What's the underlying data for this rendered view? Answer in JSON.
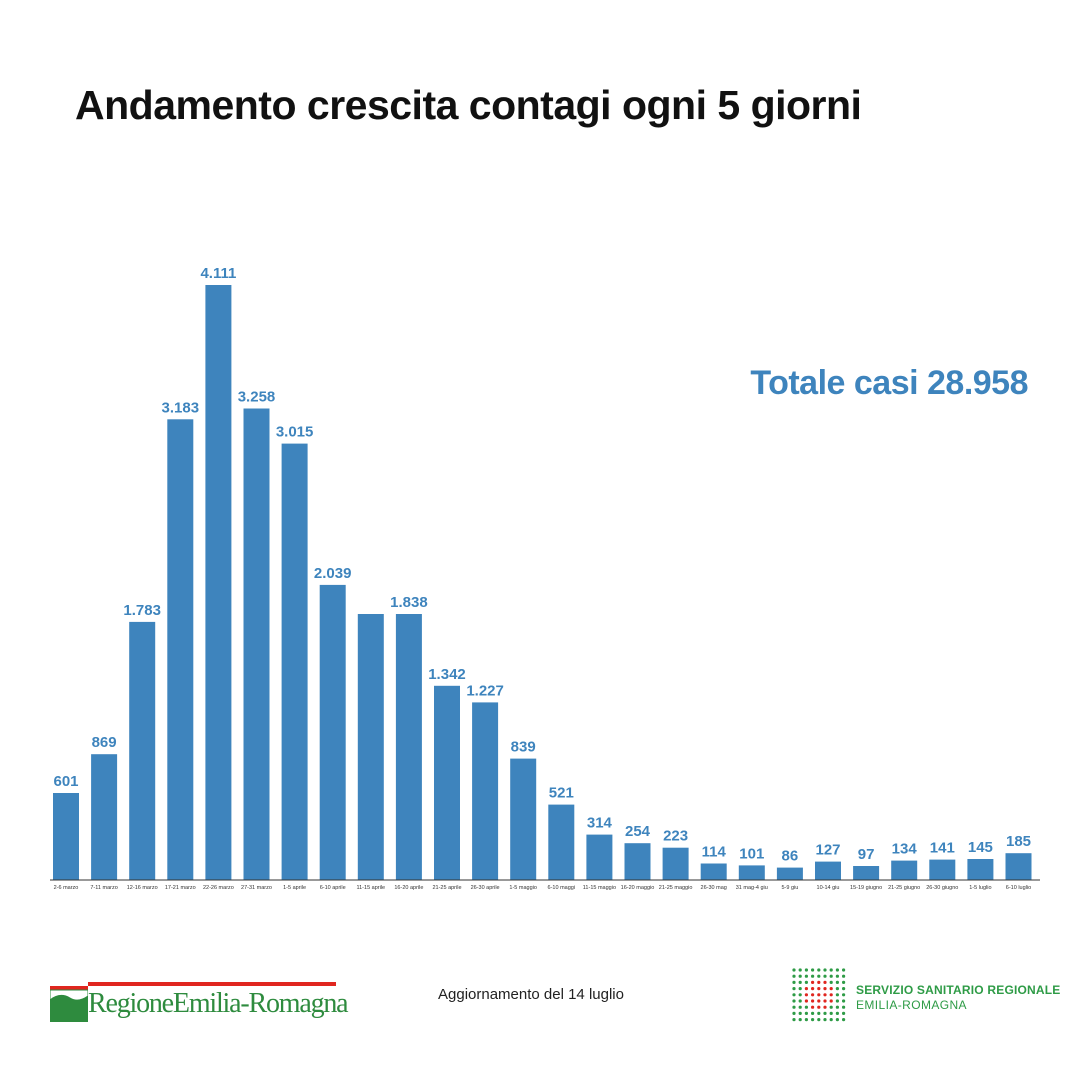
{
  "header": {
    "title": "Andamento crescita contagi ogni 5 giorni",
    "total": "Totale casi 28.958"
  },
  "footer": {
    "update_note": "Aggiornamento del 14 luglio",
    "left_logo_text": "RegioneEmilia-Romagna",
    "right_logo_line1": "SERVIZIO SANITARIO REGIONALE",
    "right_logo_line2": "EMILIA-ROMAGNA"
  },
  "colors": {
    "bar": "#3e84bd",
    "label": "#3e84bd",
    "title": "#111111",
    "axis": "#333333",
    "logo_green": "#2e8b3e",
    "logo_red": "#e0261f"
  },
  "chart_data": {
    "type": "bar",
    "title": "Andamento crescita contagi ogni 5 giorni",
    "xlabel": "",
    "ylabel": "",
    "ylim": [
      0,
      4111
    ],
    "grid": false,
    "legend": "none",
    "categories": [
      "2-6 marzo",
      "7-11 marzo",
      "12-16 marzo",
      "17-21 marzo",
      "22-26 marzo",
      "27-31 marzo",
      "1-5 aprile",
      "6-10 aprile",
      "11-15 aprile",
      "16-20 aprile",
      "21-25 aprile",
      "26-30 aprile",
      "1-5 maggio",
      "6-10 maggi",
      "11-15 maggio",
      "16-20 maggio",
      "21-25 maggio",
      "26-30 mag",
      "31 mag-4 giu",
      "5-9 giu",
      "10-14 giu",
      "15-19 giugno",
      "21-25 giugno",
      "26-30 giugno",
      "1-5 luglio",
      "6-10 luglio"
    ],
    "values": [
      601,
      869,
      1783,
      3183,
      4111,
      3258,
      3015,
      2039,
      1838,
      1838,
      1342,
      1227,
      839,
      521,
      314,
      254,
      223,
      114,
      101,
      86,
      127,
      97,
      134,
      141,
      145,
      185
    ],
    "data_labels": [
      "601",
      "869",
      "1.783",
      "3.183",
      "4.111",
      "3.258",
      "3.015",
      "2.039",
      "",
      "1.838",
      "1.342",
      "1.227",
      "839",
      "521",
      "314",
      "254",
      "223",
      "114",
      "101",
      "86",
      "127",
      "97",
      "134",
      "141",
      "145",
      "185"
    ]
  }
}
